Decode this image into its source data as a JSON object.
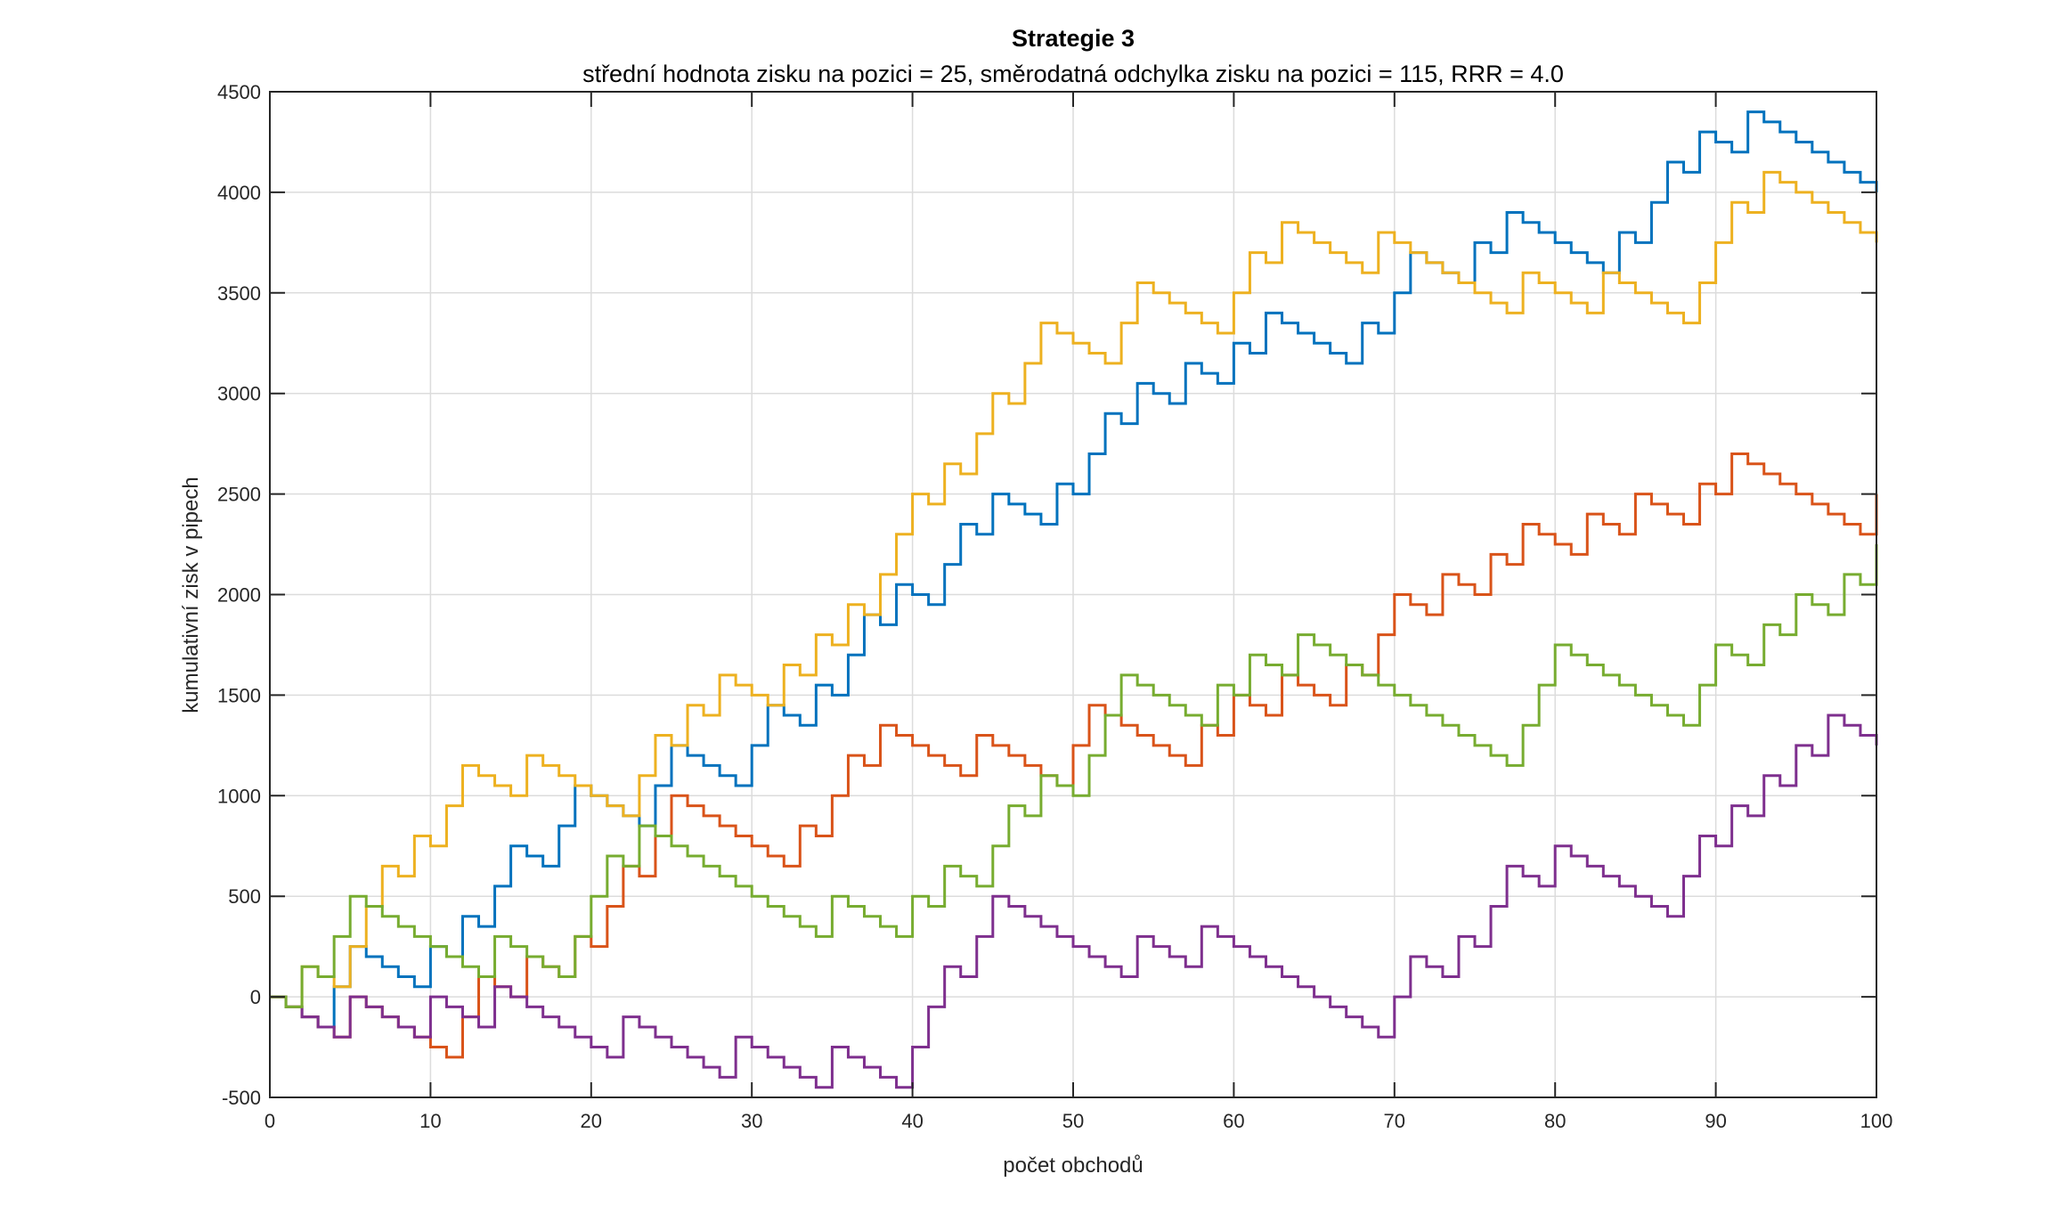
{
  "chart_data": {
    "type": "line",
    "style": "stairs",
    "title": "Strategie 3",
    "subtitle": "střední hodnota zisku na pozici = 25,  směrodatná odchylka zisku na pozici = 115,  RRR = 4.0",
    "xlabel": "počet obchodů",
    "ylabel": "kumulativní zisk v pipech",
    "xlim": [
      0,
      100
    ],
    "ylim": [
      -500,
      4500
    ],
    "xticks": [
      0,
      10,
      20,
      30,
      40,
      50,
      60,
      70,
      80,
      90,
      100
    ],
    "xtick_labels": [
      "0",
      "10",
      "20",
      "30",
      "40",
      "50",
      "60",
      "70",
      "80",
      "90",
      "100"
    ],
    "yticks": [
      -500,
      0,
      500,
      1000,
      1500,
      2000,
      2500,
      3000,
      3500,
      4000,
      4500
    ],
    "ytick_labels": [
      "-500",
      "0",
      "500",
      "1000",
      "1500",
      "2000",
      "2500",
      "3000",
      "3500",
      "4000",
      "4500"
    ],
    "grid": true,
    "legend": "none",
    "x": "0..100 step 1",
    "series": [
      {
        "color": "#0072BD",
        "values": [
          0,
          -50,
          -100,
          -150,
          50,
          250,
          200,
          150,
          100,
          50,
          250,
          200,
          400,
          350,
          550,
          750,
          700,
          650,
          850,
          1050,
          1000,
          950,
          900,
          850,
          1050,
          1250,
          1200,
          1150,
          1100,
          1050,
          1250,
          1450,
          1400,
          1350,
          1550,
          1500,
          1700,
          1900,
          1850,
          2050,
          2000,
          1950,
          2150,
          2350,
          2300,
          2500,
          2450,
          2400,
          2350,
          2550,
          2500,
          2700,
          2900,
          2850,
          3050,
          3000,
          2950,
          3150,
          3100,
          3050,
          3250,
          3200,
          3400,
          3350,
          3300,
          3250,
          3200,
          3150,
          3350,
          3300,
          3500,
          3700,
          3650,
          3600,
          3550,
          3750,
          3700,
          3900,
          3850,
          3800,
          3750,
          3700,
          3650,
          3600,
          3800,
          3750,
          3950,
          4150,
          4100,
          4300,
          4250,
          4200,
          4400,
          4350,
          4300,
          4250,
          4200,
          4150,
          4100,
          4050,
          4000
        ]
      },
      {
        "color": "#D95319",
        "values": [
          0,
          -50,
          -100,
          -150,
          -200,
          0,
          -50,
          -100,
          -150,
          -200,
          -250,
          -300,
          -100,
          100,
          50,
          0,
          200,
          150,
          100,
          300,
          250,
          450,
          650,
          600,
          800,
          1000,
          950,
          900,
          850,
          800,
          750,
          700,
          650,
          850,
          800,
          1000,
          1200,
          1150,
          1350,
          1300,
          1250,
          1200,
          1150,
          1100,
          1300,
          1250,
          1200,
          1150,
          1100,
          1050,
          1250,
          1450,
          1400,
          1350,
          1300,
          1250,
          1200,
          1150,
          1350,
          1300,
          1500,
          1450,
          1400,
          1600,
          1550,
          1500,
          1450,
          1650,
          1600,
          1800,
          2000,
          1950,
          1900,
          2100,
          2050,
          2000,
          2200,
          2150,
          2350,
          2300,
          2250,
          2200,
          2400,
          2350,
          2300,
          2500,
          2450,
          2400,
          2350,
          2550,
          2500,
          2700,
          2650,
          2600,
          2550,
          2500,
          2450,
          2400,
          2350,
          2300,
          2500
        ]
      },
      {
        "color": "#EDB120",
        "values": [
          0,
          -50,
          150,
          100,
          50,
          250,
          450,
          650,
          600,
          800,
          750,
          950,
          1150,
          1100,
          1050,
          1000,
          1200,
          1150,
          1100,
          1050,
          1000,
          950,
          900,
          1100,
          1300,
          1250,
          1450,
          1400,
          1600,
          1550,
          1500,
          1450,
          1650,
          1600,
          1800,
          1750,
          1950,
          1900,
          2100,
          2300,
          2500,
          2450,
          2650,
          2600,
          2800,
          3000,
          2950,
          3150,
          3350,
          3300,
          3250,
          3200,
          3150,
          3350,
          3550,
          3500,
          3450,
          3400,
          3350,
          3300,
          3500,
          3700,
          3650,
          3850,
          3800,
          3750,
          3700,
          3650,
          3600,
          3800,
          3750,
          3700,
          3650,
          3600,
          3550,
          3500,
          3450,
          3400,
          3600,
          3550,
          3500,
          3450,
          3400,
          3600,
          3550,
          3500,
          3450,
          3400,
          3350,
          3550,
          3750,
          3950,
          3900,
          4100,
          4050,
          4000,
          3950,
          3900,
          3850,
          3800,
          3750
        ]
      },
      {
        "color": "#7E2F8E",
        "values": [
          0,
          -50,
          -100,
          -150,
          -200,
          0,
          -50,
          -100,
          -150,
          -200,
          0,
          -50,
          -100,
          -150,
          50,
          0,
          -50,
          -100,
          -150,
          -200,
          -250,
          -300,
          -100,
          -150,
          -200,
          -250,
          -300,
          -350,
          -400,
          -200,
          -250,
          -300,
          -350,
          -400,
          -450,
          -250,
          -300,
          -350,
          -400,
          -450,
          -250,
          -50,
          150,
          100,
          300,
          500,
          450,
          400,
          350,
          300,
          250,
          200,
          150,
          100,
          300,
          250,
          200,
          150,
          350,
          300,
          250,
          200,
          150,
          100,
          50,
          0,
          -50,
          -100,
          -150,
          -200,
          0,
          200,
          150,
          100,
          300,
          250,
          450,
          650,
          600,
          550,
          750,
          700,
          650,
          600,
          550,
          500,
          450,
          400,
          600,
          800,
          750,
          950,
          900,
          1100,
          1050,
          1250,
          1200,
          1400,
          1350,
          1300,
          1250
        ]
      },
      {
        "color": "#77AC30",
        "values": [
          0,
          -50,
          150,
          100,
          300,
          500,
          450,
          400,
          350,
          300,
          250,
          200,
          150,
          100,
          300,
          250,
          200,
          150,
          100,
          300,
          500,
          700,
          650,
          850,
          800,
          750,
          700,
          650,
          600,
          550,
          500,
          450,
          400,
          350,
          300,
          500,
          450,
          400,
          350,
          300,
          500,
          450,
          650,
          600,
          550,
          750,
          950,
          900,
          1100,
          1050,
          1000,
          1200,
          1400,
          1600,
          1550,
          1500,
          1450,
          1400,
          1350,
          1550,
          1500,
          1700,
          1650,
          1600,
          1800,
          1750,
          1700,
          1650,
          1600,
          1550,
          1500,
          1450,
          1400,
          1350,
          1300,
          1250,
          1200,
          1150,
          1350,
          1550,
          1750,
          1700,
          1650,
          1600,
          1550,
          1500,
          1450,
          1400,
          1350,
          1550,
          1750,
          1700,
          1650,
          1850,
          1800,
          2000,
          1950,
          1900,
          2100,
          2050,
          2250
        ]
      }
    ]
  }
}
